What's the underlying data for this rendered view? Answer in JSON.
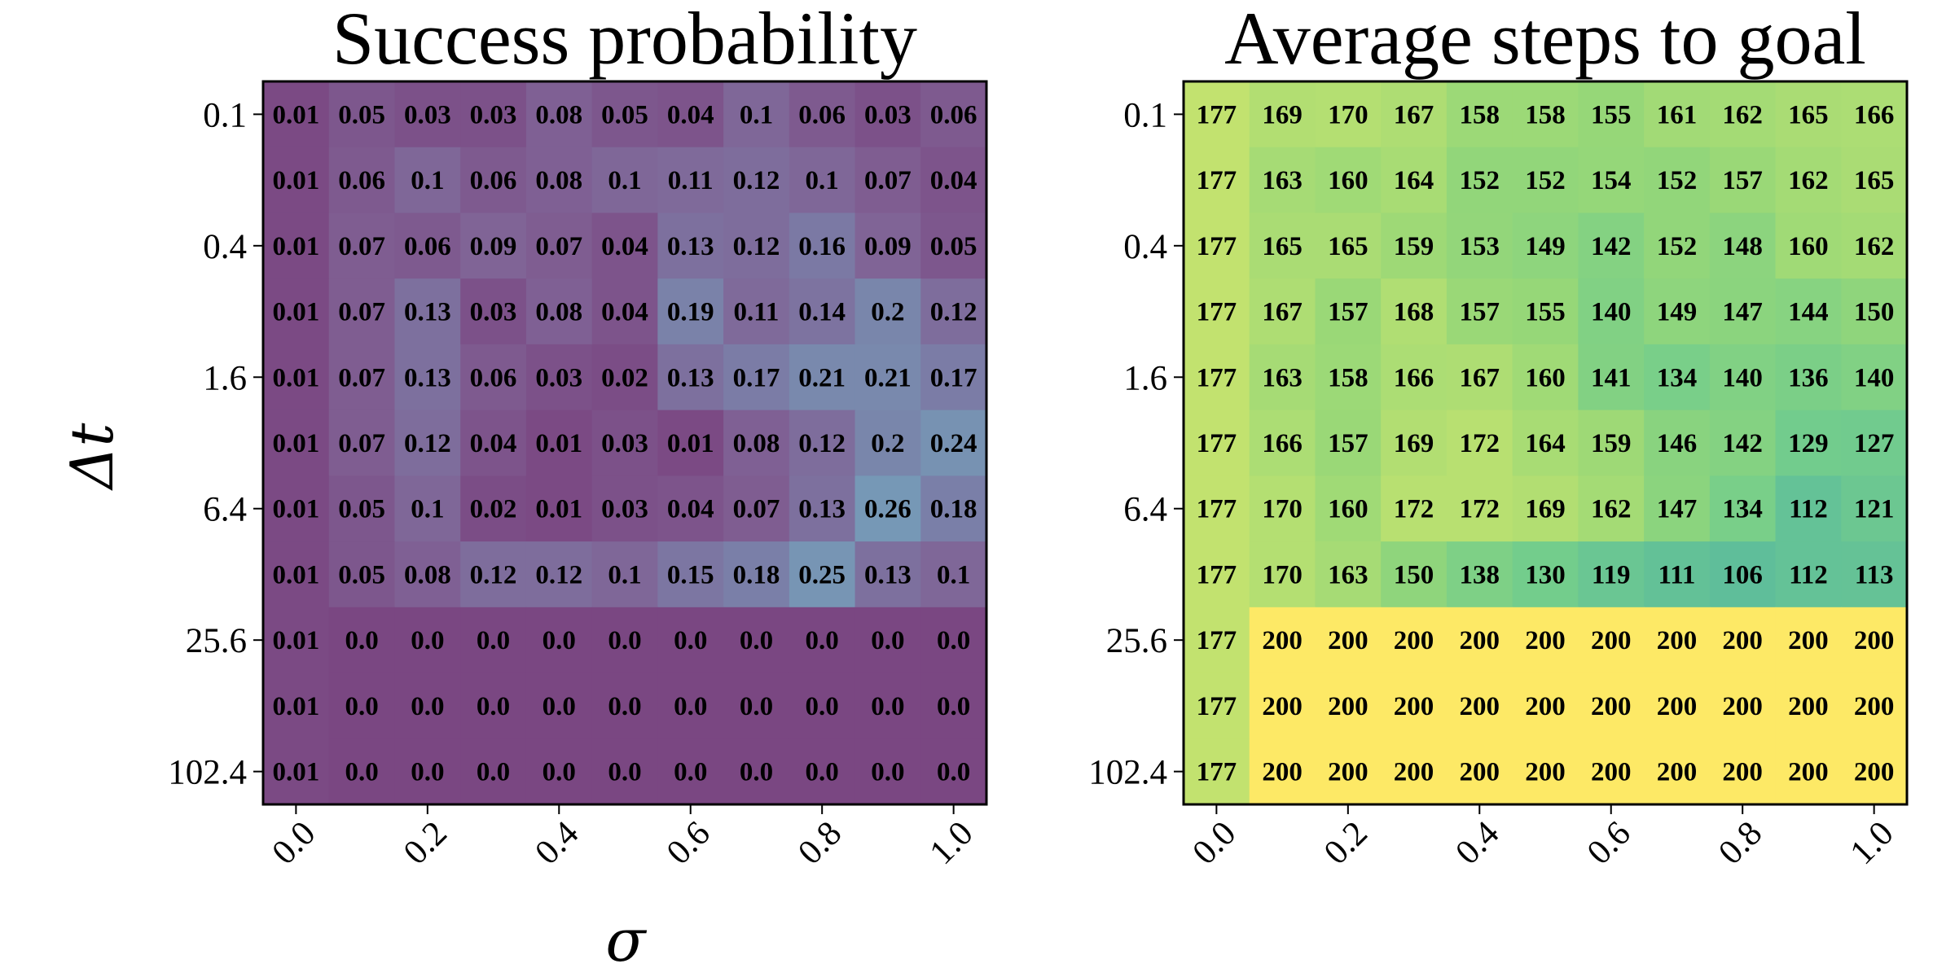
{
  "figure": {
    "xlabel": "σ",
    "ylabel": "Δt"
  },
  "chart_data": [
    {
      "type": "heatmap",
      "title": "Success probability",
      "colormap": "viridis-like purple",
      "x": [
        "0.0",
        "0.1",
        "0.2",
        "0.3",
        "0.4",
        "0.5",
        "0.6",
        "0.7",
        "0.8",
        "0.9",
        "1.0"
      ],
      "y": [
        "0.1",
        "0.2",
        "0.4",
        "0.8",
        "1.6",
        "3.2",
        "6.4",
        "12.8",
        "25.6",
        "51.2",
        "102.4"
      ],
      "xticks": [
        "0.0",
        "0.2",
        "0.4",
        "0.6",
        "0.8",
        "1.0"
      ],
      "yticks": [
        "0.1",
        "0.4",
        "1.6",
        "6.4",
        "25.6",
        "102.4"
      ],
      "vmin": 0.0,
      "vmax": 0.26,
      "values": [
        [
          "0.01",
          "0.05",
          "0.03",
          "0.03",
          "0.08",
          "0.05",
          "0.04",
          "0.1",
          "0.06",
          "0.03",
          "0.06"
        ],
        [
          "0.01",
          "0.06",
          "0.1",
          "0.06",
          "0.08",
          "0.1",
          "0.11",
          "0.12",
          "0.1",
          "0.07",
          "0.04"
        ],
        [
          "0.01",
          "0.07",
          "0.06",
          "0.09",
          "0.07",
          "0.04",
          "0.13",
          "0.12",
          "0.16",
          "0.09",
          "0.05"
        ],
        [
          "0.01",
          "0.07",
          "0.13",
          "0.03",
          "0.08",
          "0.04",
          "0.19",
          "0.11",
          "0.14",
          "0.2",
          "0.12"
        ],
        [
          "0.01",
          "0.07",
          "0.13",
          "0.06",
          "0.03",
          "0.02",
          "0.13",
          "0.17",
          "0.21",
          "0.21",
          "0.17"
        ],
        [
          "0.01",
          "0.07",
          "0.12",
          "0.04",
          "0.01",
          "0.03",
          "0.01",
          "0.08",
          "0.12",
          "0.2",
          "0.24"
        ],
        [
          "0.01",
          "0.05",
          "0.1",
          "0.02",
          "0.01",
          "0.03",
          "0.04",
          "0.07",
          "0.13",
          "0.26",
          "0.18"
        ],
        [
          "0.01",
          "0.05",
          "0.08",
          "0.12",
          "0.12",
          "0.1",
          "0.15",
          "0.18",
          "0.25",
          "0.13",
          "0.1"
        ],
        [
          "0.01",
          "0.0",
          "0.0",
          "0.0",
          "0.0",
          "0.0",
          "0.0",
          "0.0",
          "0.0",
          "0.0",
          "0.0"
        ],
        [
          "0.01",
          "0.0",
          "0.0",
          "0.0",
          "0.0",
          "0.0",
          "0.0",
          "0.0",
          "0.0",
          "0.0",
          "0.0"
        ],
        [
          "0.01",
          "0.0",
          "0.0",
          "0.0",
          "0.0",
          "0.0",
          "0.0",
          "0.0",
          "0.0",
          "0.0",
          "0.0"
        ]
      ]
    },
    {
      "type": "heatmap",
      "title": "Average steps to goal",
      "colormap": "viridis",
      "x": [
        "0.0",
        "0.1",
        "0.2",
        "0.3",
        "0.4",
        "0.5",
        "0.6",
        "0.7",
        "0.8",
        "0.9",
        "1.0"
      ],
      "y": [
        "0.1",
        "0.2",
        "0.4",
        "0.8",
        "1.6",
        "3.2",
        "6.4",
        "12.8",
        "25.6",
        "51.2",
        "102.4"
      ],
      "xticks": [
        "0.0",
        "0.2",
        "0.4",
        "0.6",
        "0.8",
        "1.0"
      ],
      "yticks": [
        "0.1",
        "0.4",
        "1.6",
        "6.4",
        "25.6",
        "102.4"
      ],
      "vmin": 100,
      "vmax": 200,
      "values": [
        [
          "177",
          "169",
          "170",
          "167",
          "158",
          "158",
          "155",
          "161",
          "162",
          "165",
          "166"
        ],
        [
          "177",
          "163",
          "160",
          "164",
          "152",
          "152",
          "154",
          "152",
          "157",
          "162",
          "165"
        ],
        [
          "177",
          "165",
          "165",
          "159",
          "153",
          "149",
          "142",
          "152",
          "148",
          "160",
          "162"
        ],
        [
          "177",
          "167",
          "157",
          "168",
          "157",
          "155",
          "140",
          "149",
          "147",
          "144",
          "150"
        ],
        [
          "177",
          "163",
          "158",
          "166",
          "167",
          "160",
          "141",
          "134",
          "140",
          "136",
          "140"
        ],
        [
          "177",
          "166",
          "157",
          "169",
          "172",
          "164",
          "159",
          "146",
          "142",
          "129",
          "127"
        ],
        [
          "177",
          "170",
          "160",
          "172",
          "172",
          "169",
          "162",
          "147",
          "134",
          "112",
          "121"
        ],
        [
          "177",
          "170",
          "163",
          "150",
          "138",
          "130",
          "119",
          "111",
          "106",
          "112",
          "113"
        ],
        [
          "177",
          "200",
          "200",
          "200",
          "200",
          "200",
          "200",
          "200",
          "200",
          "200",
          "200"
        ],
        [
          "177",
          "200",
          "200",
          "200",
          "200",
          "200",
          "200",
          "200",
          "200",
          "200",
          "200"
        ],
        [
          "177",
          "200",
          "200",
          "200",
          "200",
          "200",
          "200",
          "200",
          "200",
          "200",
          "200"
        ]
      ]
    }
  ]
}
